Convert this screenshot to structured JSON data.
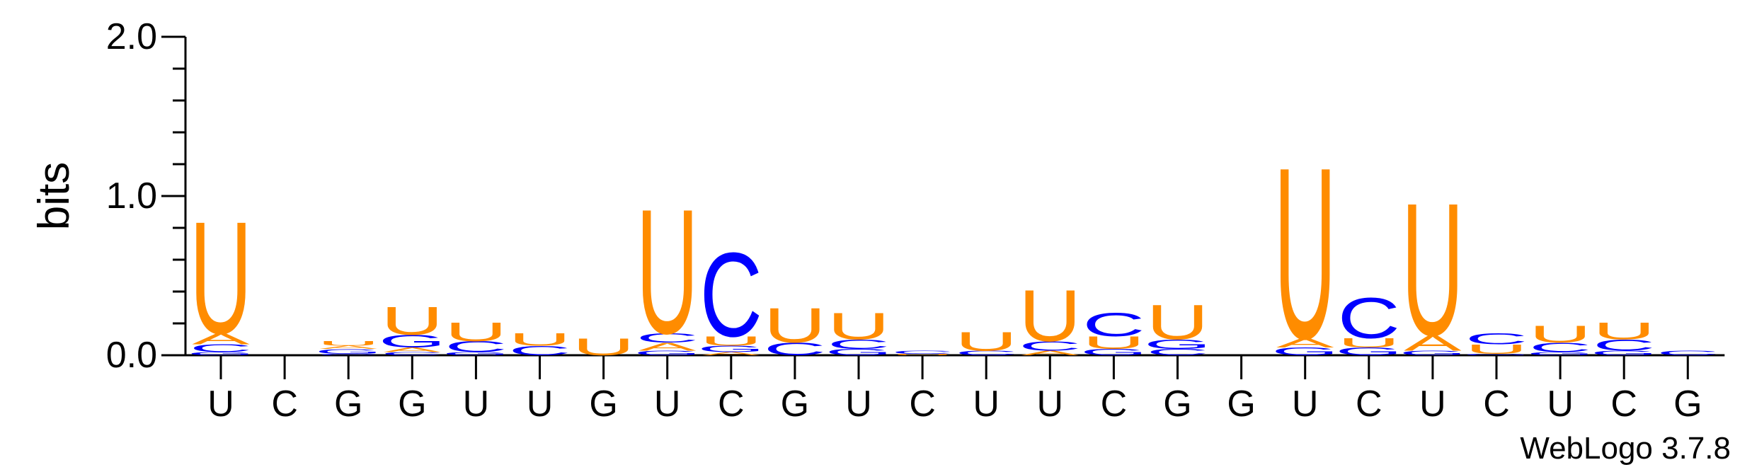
{
  "chart_data": {
    "type": "sequence-logo",
    "ylabel": "bits",
    "ylim": [
      0,
      2.0
    ],
    "yticks": [
      {
        "value": 0.0,
        "label": "0.0"
      },
      {
        "value": 1.0,
        "label": "1.0"
      },
      {
        "value": 2.0,
        "label": "2.0"
      }
    ],
    "colors": {
      "U": "#FF8C00",
      "C": "#0000FF",
      "G": "#0000FF",
      "A": "#FF8C00"
    },
    "positions": [
      {
        "label": "U",
        "stack": [
          {
            "letter": "G",
            "h": 0.02
          },
          {
            "letter": "C",
            "h": 0.05
          },
          {
            "letter": "A",
            "h": 0.07
          },
          {
            "letter": "U",
            "h": 0.72
          }
        ]
      },
      {
        "label": "C",
        "stack": []
      },
      {
        "label": "G",
        "stack": [
          {
            "letter": "C",
            "h": 0.01
          },
          {
            "letter": "G",
            "h": 0.03
          },
          {
            "letter": "A",
            "h": 0.02
          },
          {
            "letter": "U",
            "h": 0.03
          }
        ]
      },
      {
        "label": "G",
        "stack": [
          {
            "letter": "C",
            "h": 0.02
          },
          {
            "letter": "A",
            "h": 0.03
          },
          {
            "letter": "G",
            "h": 0.08
          },
          {
            "letter": "U",
            "h": 0.18
          }
        ]
      },
      {
        "label": "U",
        "stack": [
          {
            "letter": "G",
            "h": 0.02
          },
          {
            "letter": "C",
            "h": 0.07
          },
          {
            "letter": "U",
            "h": 0.12
          }
        ]
      },
      {
        "label": "U",
        "stack": [
          {
            "letter": "C",
            "h": 0.06
          },
          {
            "letter": "U",
            "h": 0.08
          }
        ]
      },
      {
        "label": "G",
        "stack": [
          {
            "letter": "U",
            "h": 0.11
          }
        ]
      },
      {
        "label": "U",
        "stack": [
          {
            "letter": "G",
            "h": 0.03
          },
          {
            "letter": "A",
            "h": 0.05
          },
          {
            "letter": "C",
            "h": 0.06
          },
          {
            "letter": "U",
            "h": 0.8
          }
        ]
      },
      {
        "label": "C",
        "stack": [
          {
            "letter": "A",
            "h": 0.02
          },
          {
            "letter": "G",
            "h": 0.04
          },
          {
            "letter": "U",
            "h": 0.06
          },
          {
            "letter": "C",
            "h": 0.54
          }
        ]
      },
      {
        "label": "G",
        "stack": [
          {
            "letter": "C",
            "h": 0.08
          },
          {
            "letter": "U",
            "h": 0.22
          }
        ]
      },
      {
        "label": "U",
        "stack": [
          {
            "letter": "G",
            "h": 0.04
          },
          {
            "letter": "C",
            "h": 0.06
          },
          {
            "letter": "U",
            "h": 0.17
          }
        ]
      },
      {
        "label": "C",
        "stack": [
          {
            "letter": "U",
            "h": 0.01
          },
          {
            "letter": "C",
            "h": 0.02
          }
        ]
      },
      {
        "label": "U",
        "stack": [
          {
            "letter": "C",
            "h": 0.03
          },
          {
            "letter": "U",
            "h": 0.12
          }
        ]
      },
      {
        "label": "U",
        "stack": [
          {
            "letter": "A",
            "h": 0.03
          },
          {
            "letter": "C",
            "h": 0.06
          },
          {
            "letter": "U",
            "h": 0.33
          }
        ]
      },
      {
        "label": "C",
        "stack": [
          {
            "letter": "G",
            "h": 0.04
          },
          {
            "letter": "U",
            "h": 0.08
          },
          {
            "letter": "C",
            "h": 0.15
          }
        ]
      },
      {
        "label": "G",
        "stack": [
          {
            "letter": "C",
            "h": 0.04
          },
          {
            "letter": "G",
            "h": 0.06
          },
          {
            "letter": "U",
            "h": 0.22
          }
        ]
      },
      {
        "label": "G",
        "stack": []
      },
      {
        "label": "U",
        "stack": [
          {
            "letter": "G",
            "h": 0.05
          },
          {
            "letter": "A",
            "h": 0.06
          },
          {
            "letter": "U",
            "h": 1.1
          }
        ]
      },
      {
        "label": "C",
        "stack": [
          {
            "letter": "G",
            "h": 0.05
          },
          {
            "letter": "U",
            "h": 0.06
          },
          {
            "letter": "C",
            "h": 0.26
          }
        ]
      },
      {
        "label": "U",
        "stack": [
          {
            "letter": "G",
            "h": 0.03
          },
          {
            "letter": "A",
            "h": 0.1
          },
          {
            "letter": "U",
            "h": 0.85
          }
        ]
      },
      {
        "label": "C",
        "stack": [
          {
            "letter": "G",
            "h": 0.01
          },
          {
            "letter": "U",
            "h": 0.06
          },
          {
            "letter": "C",
            "h": 0.07
          }
        ]
      },
      {
        "label": "U",
        "stack": [
          {
            "letter": "G",
            "h": 0.02
          },
          {
            "letter": "C",
            "h": 0.06
          },
          {
            "letter": "U",
            "h": 0.11
          }
        ]
      },
      {
        "label": "C",
        "stack": [
          {
            "letter": "G",
            "h": 0.03
          },
          {
            "letter": "C",
            "h": 0.07
          },
          {
            "letter": "U",
            "h": 0.11
          }
        ]
      },
      {
        "label": "G",
        "stack": [
          {
            "letter": "C",
            "h": 0.03
          }
        ]
      }
    ]
  },
  "credit": "WebLogo 3.7.8"
}
